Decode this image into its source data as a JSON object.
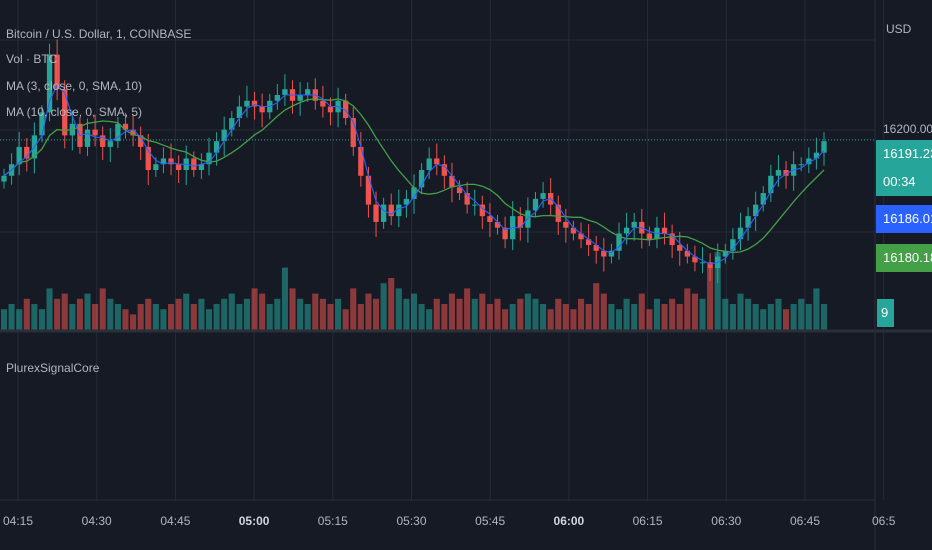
{
  "header": {
    "symbol": "Bitcoin / U.S. Dollar, 1, COINBASE",
    "volume": "Vol · BTC",
    "ma1": "MA (3, close, 0, SMA, 10)",
    "ma2": "MA (10, close, 0, SMA, 5)"
  },
  "lower_pane": {
    "title": "PlurexSignalCore"
  },
  "price_axis": {
    "currency": "USD",
    "level_label": "16200.00",
    "last_price": "16191.23",
    "countdown": "00:34",
    "ma1_value": "16186.01",
    "ma2_value": "16180.18",
    "volume_value": "9"
  },
  "colors": {
    "background": "#161a25",
    "up": "#26a69a",
    "down": "#ef5350",
    "ma1": "#2962ff",
    "ma2": "#43a047",
    "grid": "#262b38"
  },
  "time_axis": {
    "labels": [
      "04:15",
      "04:30",
      "04:45",
      "05:00",
      "05:15",
      "05:30",
      "05:45",
      "06:00",
      "06:15",
      "06:30",
      "06:45",
      "06:5"
    ],
    "bold": [
      "05:00",
      "06:00"
    ]
  },
  "chart_data": {
    "type": "candlestick",
    "title": "Bitcoin / U.S. Dollar, 1, COINBASE",
    "interval": "1 minute",
    "x_range": [
      "04:13",
      "06:48"
    ],
    "y_label_shown": 16200.0,
    "last_price": 16191.23,
    "ma3_last": 16186.01,
    "ma10_last": 16180.18,
    "close_series": [
      16185,
      16187,
      16190,
      16188,
      16192,
      16196,
      16206,
      16200,
      16192,
      16194,
      16190,
      16193,
      16192,
      16190,
      16191,
      16194,
      16193,
      16192,
      16190,
      16186,
      16187,
      16188,
      16187,
      16186,
      16188,
      16186,
      16187,
      16189,
      16191,
      16193,
      16195,
      16197,
      16198,
      16197,
      16196,
      16198,
      16199,
      16200,
      16198,
      16199,
      16200,
      16198,
      16197,
      16196,
      16198,
      16195,
      16190,
      16185,
      16180,
      16177,
      16180,
      16178,
      16180,
      16181,
      16183,
      16186,
      16188,
      16187,
      16185,
      16183,
      16182,
      16180,
      16180,
      16178,
      16177,
      16176,
      16174,
      16178,
      16176,
      16179,
      16181,
      16182,
      16180,
      16177,
      16176,
      16175,
      16174,
      16173,
      16172,
      16171,
      16172,
      16175,
      16176,
      16177,
      16175,
      16174,
      16176,
      16175,
      16173,
      16172,
      16171,
      16170,
      16170,
      16169,
      16171,
      16172,
      16174,
      16176,
      16178,
      16180,
      16182,
      16185,
      16186,
      16185,
      16187,
      16187,
      16188,
      16189,
      16191
    ],
    "volume_series": [
      4,
      5,
      4,
      6,
      5,
      4,
      8,
      6,
      7,
      5,
      6,
      7,
      5,
      8,
      6,
      5,
      4,
      3,
      5,
      6,
      5,
      4,
      5,
      6,
      7,
      5,
      6,
      4,
      5,
      6,
      7,
      5,
      6,
      8,
      7,
      5,
      6,
      12,
      8,
      6,
      5,
      7,
      6,
      5,
      6,
      4,
      8,
      5,
      7,
      6,
      9,
      10,
      8,
      6,
      7,
      5,
      4,
      6,
      5,
      7,
      6,
      8,
      6,
      7,
      5,
      6,
      4,
      5,
      6,
      7,
      6,
      5,
      4,
      6,
      5,
      4,
      6,
      5,
      9,
      7,
      5,
      4,
      6,
      5,
      7,
      4,
      6,
      5,
      6,
      5,
      8,
      7,
      6,
      12,
      15,
      6,
      5,
      7,
      6,
      5,
      4,
      5,
      6,
      4,
      5,
      6,
      5,
      8,
      5
    ]
  }
}
